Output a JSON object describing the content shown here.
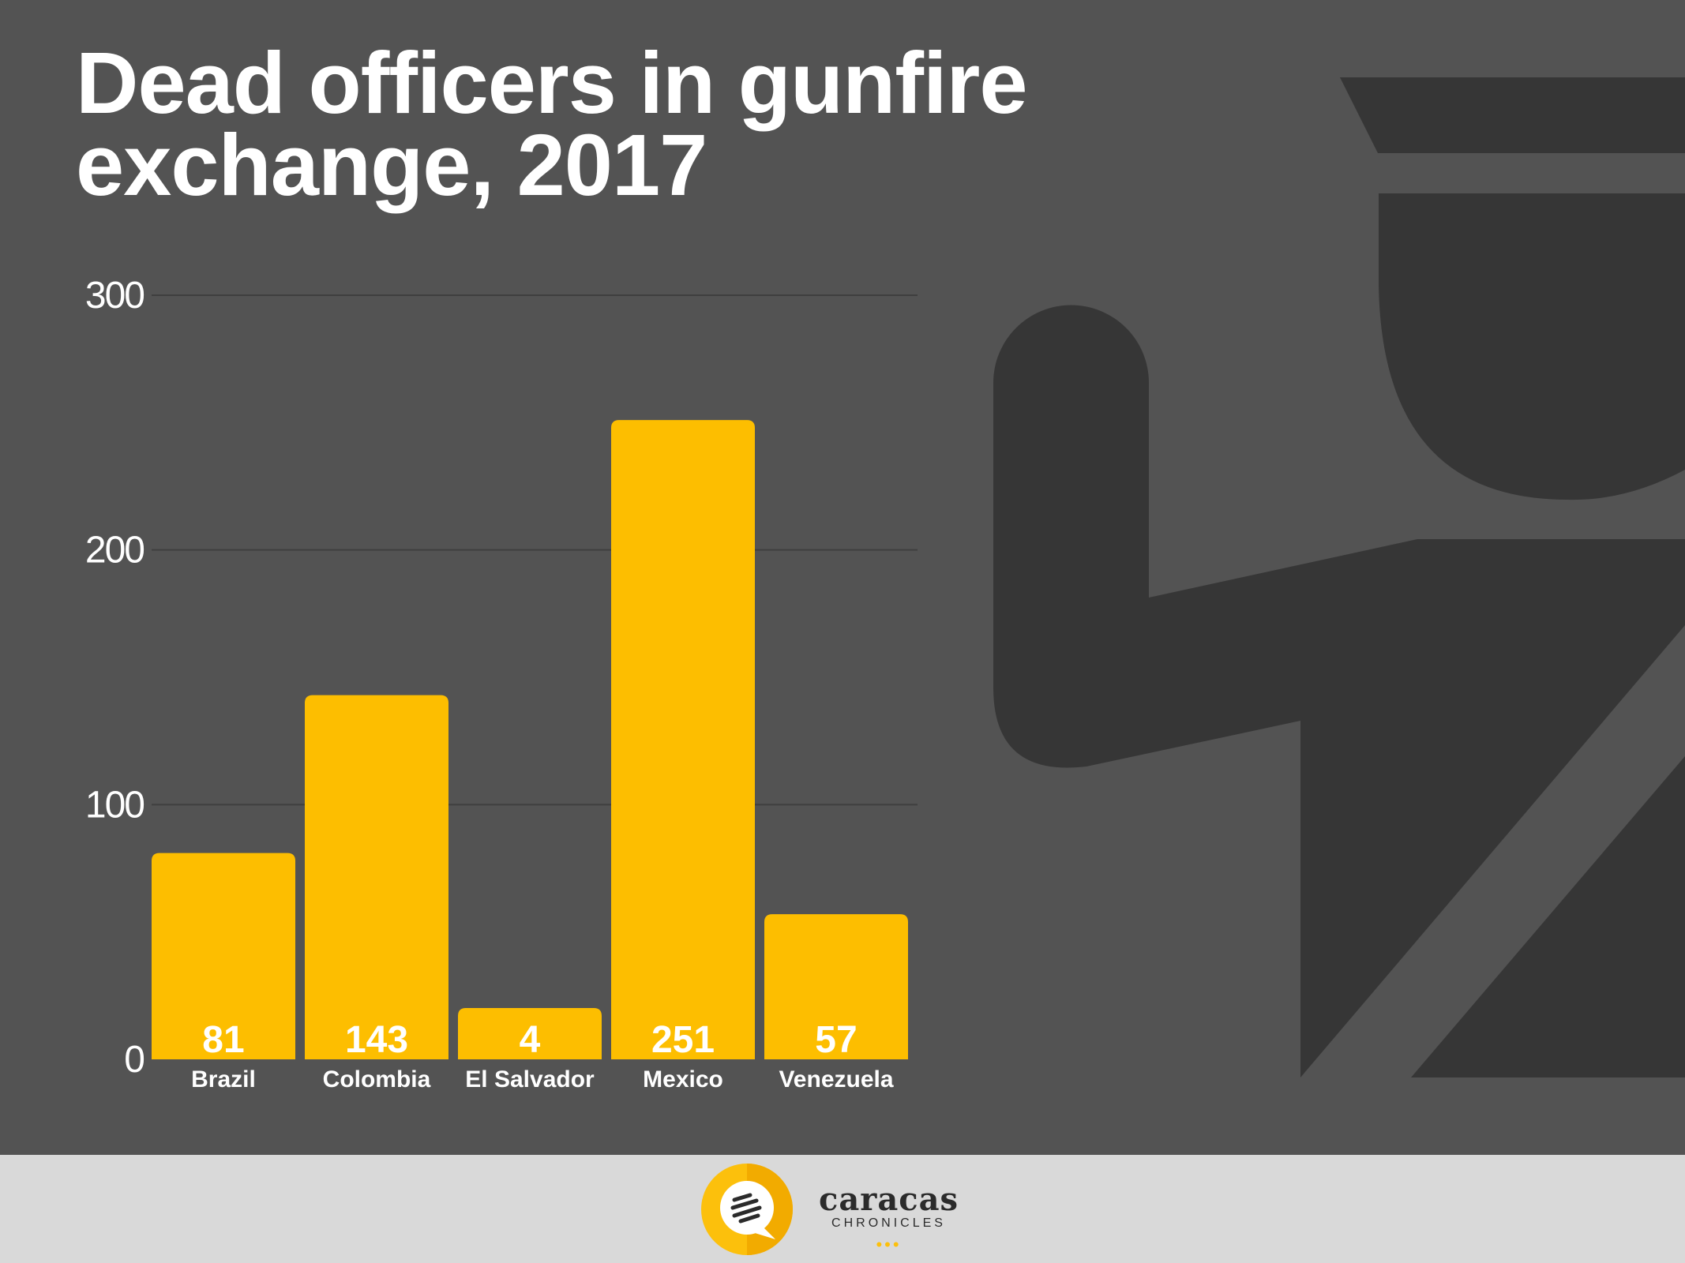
{
  "colors": {
    "background": "#535353",
    "silhouette": "#363636",
    "bar": "#fdbe00",
    "footer": "#d9d9d9",
    "text": "#ffffff"
  },
  "chart_data": {
    "type": "bar",
    "title_lines": [
      "Dead officers in gunfire",
      "exchange, 2017"
    ],
    "categories": [
      "Brazil",
      "Colombia",
      "El Salvador",
      "Mexico",
      "Venezuela"
    ],
    "values": [
      81,
      143,
      4,
      251,
      57
    ],
    "data_labels": [
      "81",
      "143",
      "4",
      "251",
      "57"
    ],
    "xlabel": "",
    "ylabel": "",
    "ylim": [
      0,
      300
    ],
    "yticks": [
      0,
      100,
      200,
      300
    ],
    "grid": true,
    "legend": "none"
  },
  "footer": {
    "brand_name": "caracas",
    "brand_sub": "CHRONICLES",
    "logo_icon": "speech-bubble-icon"
  }
}
